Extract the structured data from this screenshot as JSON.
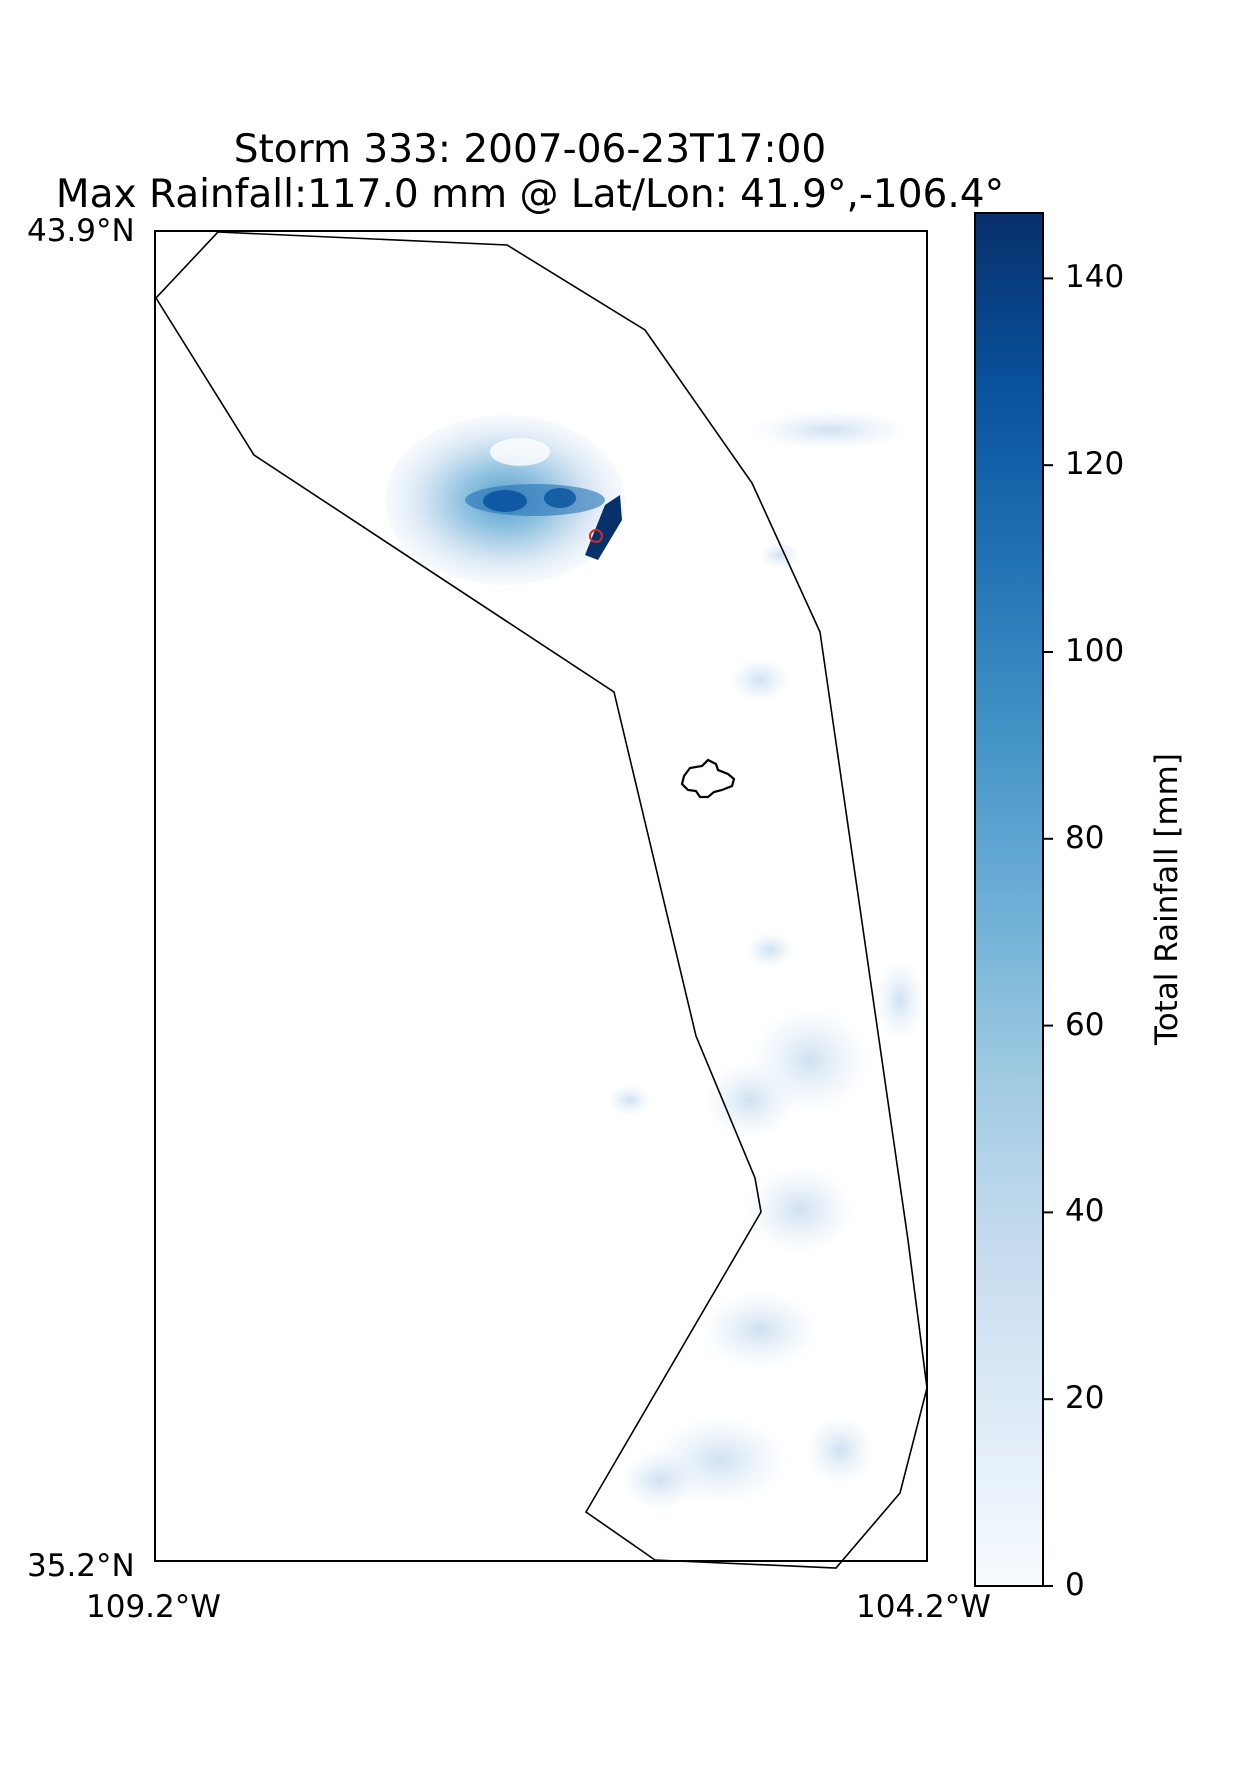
{
  "title": {
    "line1": "Storm 333: 2007-06-23T17:00",
    "line2": "Max Rainfall:117.0 mm @ Lat/Lon:  41.9°,-106.4°"
  },
  "axes": {
    "lat_top": "43.9°N",
    "lat_bottom": "35.2°N",
    "lon_left": "109.2°W",
    "lon_right": "104.2°W"
  },
  "colorbar": {
    "label": "Total Rainfall [mm]",
    "ticks": [
      "0",
      "20",
      "40",
      "60",
      "80",
      "100",
      "120",
      "140"
    ],
    "range": [
      0,
      147
    ],
    "colormap": "Blues",
    "colors": [
      "#f7fbff",
      "#deebf7",
      "#c6dbef",
      "#9ecae1",
      "#6baed6",
      "#4292c6",
      "#2171b5",
      "#08519c",
      "#08306b"
    ]
  },
  "chart_data": {
    "type": "heatmap",
    "title": "Storm 333: 2007-06-23T17:00\nMax Rainfall:117.0 mm @ Lat/Lon:  41.9°,-106.4°",
    "lat_range": [
      35.2,
      43.9
    ],
    "lon_range": [
      -109.2,
      -104.2
    ],
    "max_rainfall_mm": 117.0,
    "max_location": {
      "lat": 41.9,
      "lon": -106.4
    },
    "marker_color": "#d62728",
    "boundary_color": "#000000",
    "value_label": "Total Rainfall [mm]",
    "vmin": 0,
    "vmax": 147
  }
}
